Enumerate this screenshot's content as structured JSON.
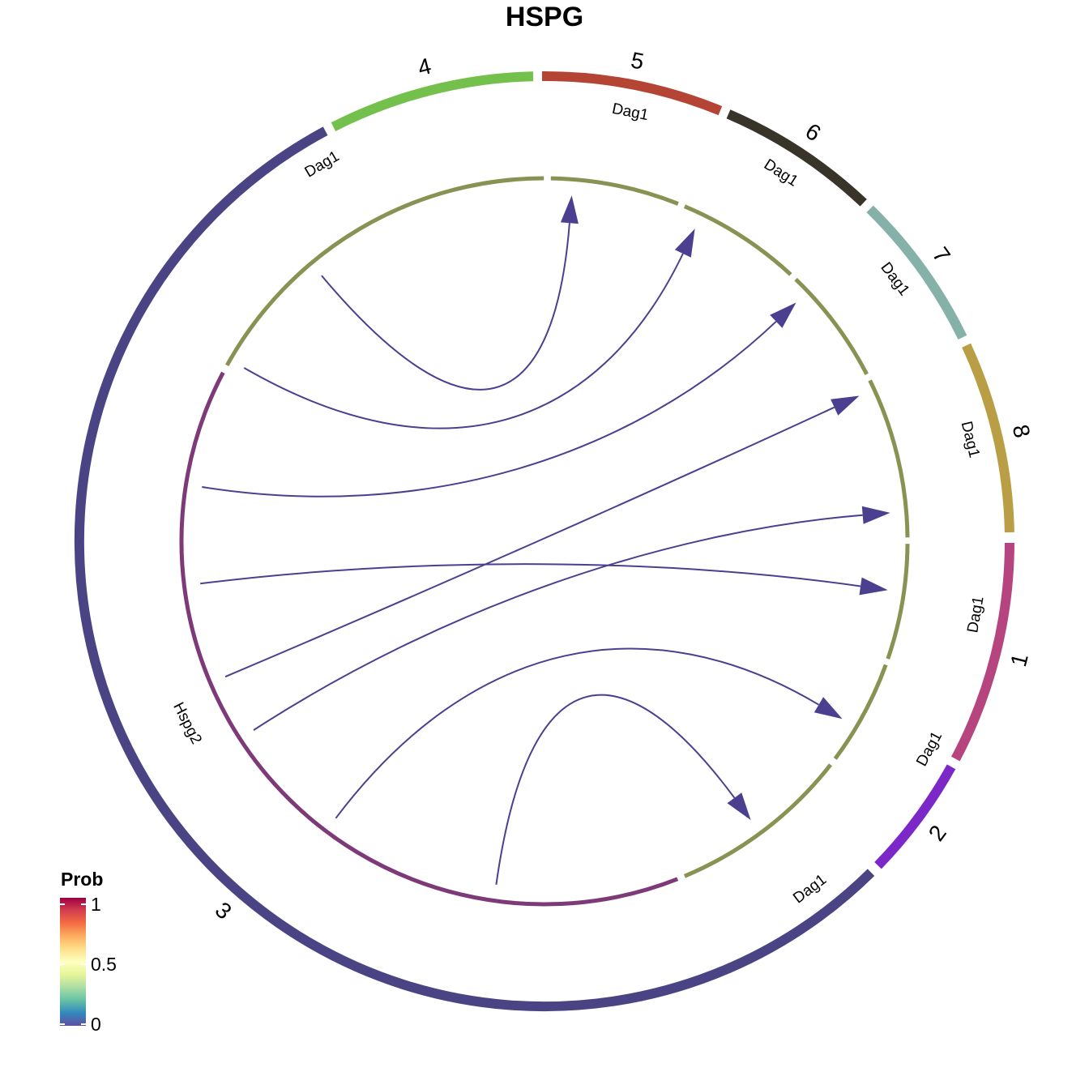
{
  "title": "HSPG",
  "sectors": [
    {
      "id": "1",
      "label": "1",
      "color": "#B5447F"
    },
    {
      "id": "2",
      "label": "2",
      "color": "#7C28C8"
    },
    {
      "id": "3",
      "label": "3",
      "color": "#4B4484"
    },
    {
      "id": "4",
      "label": "4",
      "color": "#73C04C"
    },
    {
      "id": "5",
      "label": "5",
      "color": "#B44433"
    },
    {
      "id": "6",
      "label": "6",
      "color": "#38342A"
    },
    {
      "id": "7",
      "label": "7",
      "color": "#86B1A9"
    },
    {
      "id": "8",
      "label": "8",
      "color": "#B99E45"
    }
  ],
  "genes": [
    {
      "sector": "1",
      "label": "Dag1",
      "role": "receptor",
      "color": "#8A9253"
    },
    {
      "sector": "2",
      "label": "Dag1",
      "role": "receptor",
      "color": "#8A9253"
    },
    {
      "sector": "3",
      "label": "Dag1",
      "role": "receptor",
      "color": "#8A9253"
    },
    {
      "sector": "3",
      "label": "Hspg2",
      "role": "ligand",
      "color": "#7E3A78"
    },
    {
      "sector": "4",
      "label": "Dag1",
      "role": "receptor",
      "color": "#8A9253"
    },
    {
      "sector": "5",
      "label": "Dag1",
      "role": "receptor",
      "color": "#8A9253"
    },
    {
      "sector": "6",
      "label": "Dag1",
      "role": "receptor",
      "color": "#8A9253"
    },
    {
      "sector": "7",
      "label": "Dag1",
      "role": "receptor",
      "color": "#8A9253"
    },
    {
      "sector": "8",
      "label": "Dag1",
      "role": "receptor",
      "color": "#8A9253"
    }
  ],
  "links": [
    {
      "from": "3",
      "to": "1",
      "color": "#4B3F8F"
    },
    {
      "from": "3",
      "to": "2",
      "color": "#4B3F8F"
    },
    {
      "from": "3",
      "to": "3",
      "color": "#4B3F8F"
    },
    {
      "from": "3",
      "to": "4",
      "color": "#4B3F8F"
    },
    {
      "from": "3",
      "to": "5",
      "color": "#4B3F8F"
    },
    {
      "from": "3",
      "to": "6",
      "color": "#4B3F8F"
    },
    {
      "from": "3",
      "to": "7",
      "color": "#4B3F8F"
    },
    {
      "from": "3",
      "to": "8",
      "color": "#4B3F8F"
    }
  ],
  "legend": {
    "title": "Prob",
    "ticks": [
      "1",
      "0.5",
      "0"
    ],
    "colormap": [
      "#9E0142",
      "#D53E4F",
      "#F46D43",
      "#FDAE61",
      "#FEE08B",
      "#FFFFBF",
      "#E6F598",
      "#ABDDA4",
      "#66C2A5",
      "#3288BD",
      "#5E4FA2"
    ]
  }
}
